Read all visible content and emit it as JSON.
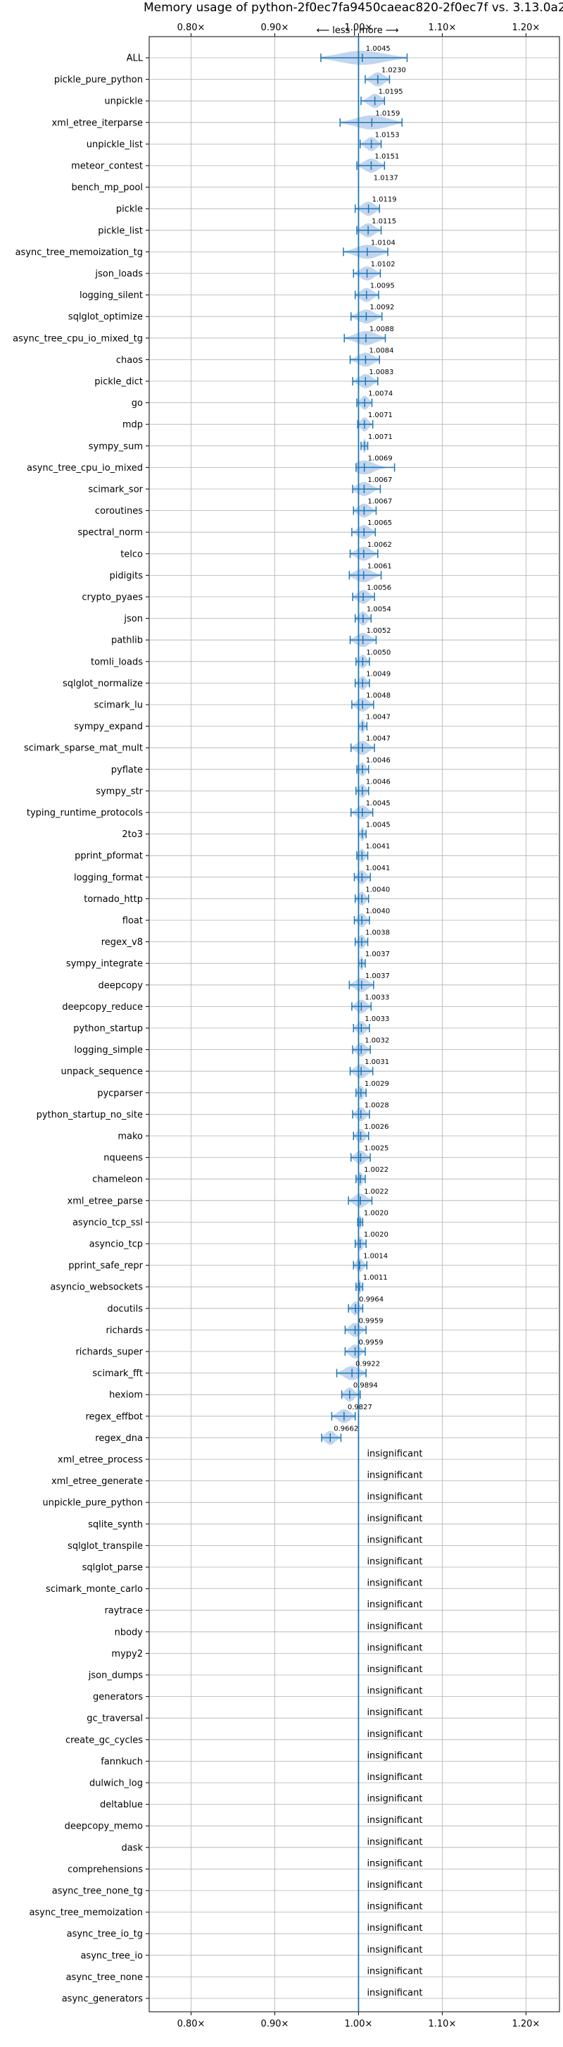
{
  "chart_data": {
    "type": "violin",
    "title": "Memory usage of python-2f0ec7fa9450caeac820-2f0ec7f vs. 3.13.0a2+",
    "direction_label": "⟵ less | more ⟶",
    "xlim": [
      0.75,
      1.24
    ],
    "xticks": [
      0.8,
      0.9,
      1.0,
      1.1,
      1.2
    ],
    "xtick_labels": [
      "0.80×",
      "0.90×",
      "1.00×",
      "1.10×",
      "1.20×"
    ],
    "reference_line": 1.0,
    "grid": true,
    "colors": {
      "series": "#1f77b4",
      "violin_fill": "#aec7e8",
      "grid": "#b0b0b0"
    },
    "insignificant_label": "insignificant",
    "benchmarks": [
      {
        "name": "ALL",
        "value": 1.0045,
        "label": "1.0045",
        "lo": 0.955,
        "hi": 1.058
      },
      {
        "name": "pickle_pure_python",
        "value": 1.023,
        "label": "1.0230",
        "lo": 1.008,
        "hi": 1.037
      },
      {
        "name": "unpickle",
        "value": 1.0195,
        "label": "1.0195",
        "lo": 1.003,
        "hi": 1.031
      },
      {
        "name": "xml_etree_iterparse",
        "value": 1.0159,
        "label": "1.0159",
        "lo": 0.978,
        "hi": 1.052
      },
      {
        "name": "unpickle_list",
        "value": 1.0153,
        "label": "1.0153",
        "lo": 1.002,
        "hi": 1.027
      },
      {
        "name": "meteor_contest",
        "value": 1.0151,
        "label": "1.0151",
        "lo": 0.998,
        "hi": 1.031
      },
      {
        "name": "bench_mp_pool",
        "value": 1.0137,
        "label": "1.0137",
        "lo": null,
        "hi": null
      },
      {
        "name": "pickle",
        "value": 1.0119,
        "label": "1.0119",
        "lo": 0.996,
        "hi": 1.025
      },
      {
        "name": "pickle_list",
        "value": 1.0115,
        "label": "1.0115",
        "lo": 0.998,
        "hi": 1.027
      },
      {
        "name": "async_tree_memoization_tg",
        "value": 1.0104,
        "label": "1.0104",
        "lo": 0.982,
        "hi": 1.035
      },
      {
        "name": "json_loads",
        "value": 1.0102,
        "label": "1.0102",
        "lo": 0.994,
        "hi": 1.026
      },
      {
        "name": "logging_silent",
        "value": 1.0095,
        "label": "1.0095",
        "lo": 0.996,
        "hi": 1.024
      },
      {
        "name": "sqlglot_optimize",
        "value": 1.0092,
        "label": "1.0092",
        "lo": 0.991,
        "hi": 1.028
      },
      {
        "name": "async_tree_cpu_io_mixed_tg",
        "value": 1.0088,
        "label": "1.0088",
        "lo": 0.983,
        "hi": 1.032
      },
      {
        "name": "chaos",
        "value": 1.0084,
        "label": "1.0084",
        "lo": 0.99,
        "hi": 1.025
      },
      {
        "name": "pickle_dict",
        "value": 1.0083,
        "label": "1.0083",
        "lo": 0.993,
        "hi": 1.023
      },
      {
        "name": "go",
        "value": 1.0074,
        "label": "1.0074",
        "lo": 0.998,
        "hi": 1.016
      },
      {
        "name": "mdp",
        "value": 1.0071,
        "label": "1.0071",
        "lo": 0.999,
        "hi": 1.017
      },
      {
        "name": "sympy_sum",
        "value": 1.0071,
        "label": "1.0071",
        "lo": 1.003,
        "hi": 1.011
      },
      {
        "name": "async_tree_cpu_io_mixed",
        "value": 1.0069,
        "label": "1.0069",
        "lo": 0.997,
        "hi": 1.043
      },
      {
        "name": "scimark_sor",
        "value": 1.0067,
        "label": "1.0067",
        "lo": 0.993,
        "hi": 1.026
      },
      {
        "name": "coroutines",
        "value": 1.0067,
        "label": "1.0067",
        "lo": 0.994,
        "hi": 1.021
      },
      {
        "name": "spectral_norm",
        "value": 1.0065,
        "label": "1.0065",
        "lo": 0.992,
        "hi": 1.02
      },
      {
        "name": "telco",
        "value": 1.0062,
        "label": "1.0062",
        "lo": 0.99,
        "hi": 1.023
      },
      {
        "name": "pidigits",
        "value": 1.0061,
        "label": "1.0061",
        "lo": 0.989,
        "hi": 1.027
      },
      {
        "name": "crypto_pyaes",
        "value": 1.0056,
        "label": "1.0056",
        "lo": 0.993,
        "hi": 1.019
      },
      {
        "name": "json",
        "value": 1.0054,
        "label": "1.0054",
        "lo": 0.996,
        "hi": 1.015
      },
      {
        "name": "pathlib",
        "value": 1.0052,
        "label": "1.0052",
        "lo": 0.99,
        "hi": 1.021
      },
      {
        "name": "tomli_loads",
        "value": 1.005,
        "label": "1.0050",
        "lo": 0.997,
        "hi": 1.013
      },
      {
        "name": "sqlglot_normalize",
        "value": 1.0049,
        "label": "1.0049",
        "lo": 0.996,
        "hi": 1.013
      },
      {
        "name": "scimark_lu",
        "value": 1.0048,
        "label": "1.0048",
        "lo": 0.992,
        "hi": 1.018
      },
      {
        "name": "sympy_expand",
        "value": 1.0047,
        "label": "1.0047",
        "lo": 1.0,
        "hi": 1.01
      },
      {
        "name": "scimark_sparse_mat_mult",
        "value": 1.0047,
        "label": "1.0047",
        "lo": 0.991,
        "hi": 1.019
      },
      {
        "name": "pyflate",
        "value": 1.0046,
        "label": "1.0046",
        "lo": 0.998,
        "hi": 1.012
      },
      {
        "name": "sympy_str",
        "value": 1.0046,
        "label": "1.0046",
        "lo": 0.997,
        "hi": 1.012
      },
      {
        "name": "typing_runtime_protocols",
        "value": 1.0045,
        "label": "1.0045",
        "lo": 0.991,
        "hi": 1.017
      },
      {
        "name": "2to3",
        "value": 1.0045,
        "label": "1.0045",
        "lo": 1.0,
        "hi": 1.009
      },
      {
        "name": "pprint_pformat",
        "value": 1.0041,
        "label": "1.0041",
        "lo": 0.998,
        "hi": 1.011
      },
      {
        "name": "logging_format",
        "value": 1.0041,
        "label": "1.0041",
        "lo": 0.995,
        "hi": 1.014
      },
      {
        "name": "tornado_http",
        "value": 1.004,
        "label": "1.0040",
        "lo": 0.996,
        "hi": 1.012
      },
      {
        "name": "float",
        "value": 1.004,
        "label": "1.0040",
        "lo": 0.995,
        "hi": 1.013
      },
      {
        "name": "regex_v8",
        "value": 1.0038,
        "label": "1.0038",
        "lo": 0.996,
        "hi": 1.011
      },
      {
        "name": "sympy_integrate",
        "value": 1.0037,
        "label": "1.0037",
        "lo": 1.0,
        "hi": 1.008
      },
      {
        "name": "deepcopy",
        "value": 1.0037,
        "label": "1.0037",
        "lo": 0.989,
        "hi": 1.018
      },
      {
        "name": "deepcopy_reduce",
        "value": 1.0033,
        "label": "1.0033",
        "lo": 0.992,
        "hi": 1.015
      },
      {
        "name": "python_startup",
        "value": 1.0033,
        "label": "1.0033",
        "lo": 0.994,
        "hi": 1.013
      },
      {
        "name": "logging_simple",
        "value": 1.0032,
        "label": "1.0032",
        "lo": 0.993,
        "hi": 1.014
      },
      {
        "name": "unpack_sequence",
        "value": 1.0031,
        "label": "1.0031",
        "lo": 0.99,
        "hi": 1.017
      },
      {
        "name": "pycparser",
        "value": 1.0029,
        "label": "1.0029",
        "lo": 0.997,
        "hi": 1.009
      },
      {
        "name": "python_startup_no_site",
        "value": 1.0028,
        "label": "1.0028",
        "lo": 0.993,
        "hi": 1.013
      },
      {
        "name": "mako",
        "value": 1.0026,
        "label": "1.0026",
        "lo": 0.994,
        "hi": 1.012
      },
      {
        "name": "nqueens",
        "value": 1.0025,
        "label": "1.0025",
        "lo": 0.991,
        "hi": 1.014
      },
      {
        "name": "chameleon",
        "value": 1.0022,
        "label": "1.0022",
        "lo": 0.997,
        "hi": 1.008
      },
      {
        "name": "xml_etree_parse",
        "value": 1.0022,
        "label": "1.0022",
        "lo": 0.988,
        "hi": 1.016
      },
      {
        "name": "asyncio_tcp_ssl",
        "value": 1.002,
        "label": "1.0020",
        "lo": 0.999,
        "hi": 1.005
      },
      {
        "name": "asyncio_tcp",
        "value": 1.002,
        "label": "1.0020",
        "lo": 0.996,
        "hi": 1.009
      },
      {
        "name": "pprint_safe_repr",
        "value": 1.0014,
        "label": "1.0014",
        "lo": 0.994,
        "hi": 1.01
      },
      {
        "name": "asyncio_websockets",
        "value": 1.0011,
        "label": "1.0011",
        "lo": 0.997,
        "hi": 1.005
      },
      {
        "name": "docutils",
        "value": 0.9964,
        "label": "0.9964",
        "lo": 0.988,
        "hi": 1.005
      },
      {
        "name": "richards",
        "value": 0.9959,
        "label": "0.9959",
        "lo": 0.984,
        "hi": 1.009
      },
      {
        "name": "richards_super",
        "value": 0.9959,
        "label": "0.9959",
        "lo": 0.984,
        "hi": 1.008
      },
      {
        "name": "scimark_fft",
        "value": 0.9922,
        "label": "0.9922",
        "lo": 0.974,
        "hi": 1.009
      },
      {
        "name": "hexiom",
        "value": 0.9894,
        "label": "0.9894",
        "lo": 0.98,
        "hi": 1.002
      },
      {
        "name": "regex_effbot",
        "value": 0.9827,
        "label": "0.9827",
        "lo": 0.968,
        "hi": 0.996
      },
      {
        "name": "regex_dna",
        "value": 0.9662,
        "label": "0.9662",
        "lo": 0.956,
        "hi": 0.979
      },
      {
        "name": "xml_etree_process",
        "value": null,
        "label": null
      },
      {
        "name": "xml_etree_generate",
        "value": null,
        "label": null
      },
      {
        "name": "unpickle_pure_python",
        "value": null,
        "label": null
      },
      {
        "name": "sqlite_synth",
        "value": null,
        "label": null
      },
      {
        "name": "sqlglot_transpile",
        "value": null,
        "label": null
      },
      {
        "name": "sqlglot_parse",
        "value": null,
        "label": null
      },
      {
        "name": "scimark_monte_carlo",
        "value": null,
        "label": null
      },
      {
        "name": "raytrace",
        "value": null,
        "label": null
      },
      {
        "name": "nbody",
        "value": null,
        "label": null
      },
      {
        "name": "mypy2",
        "value": null,
        "label": null
      },
      {
        "name": "json_dumps",
        "value": null,
        "label": null
      },
      {
        "name": "generators",
        "value": null,
        "label": null
      },
      {
        "name": "gc_traversal",
        "value": null,
        "label": null
      },
      {
        "name": "create_gc_cycles",
        "value": null,
        "label": null
      },
      {
        "name": "fannkuch",
        "value": null,
        "label": null
      },
      {
        "name": "dulwich_log",
        "value": null,
        "label": null
      },
      {
        "name": "deltablue",
        "value": null,
        "label": null
      },
      {
        "name": "deepcopy_memo",
        "value": null,
        "label": null
      },
      {
        "name": "dask",
        "value": null,
        "label": null
      },
      {
        "name": "comprehensions",
        "value": null,
        "label": null
      },
      {
        "name": "async_tree_none_tg",
        "value": null,
        "label": null
      },
      {
        "name": "async_tree_memoization",
        "value": null,
        "label": null
      },
      {
        "name": "async_tree_io_tg",
        "value": null,
        "label": null
      },
      {
        "name": "async_tree_io",
        "value": null,
        "label": null
      },
      {
        "name": "async_tree_none",
        "value": null,
        "label": null
      },
      {
        "name": "async_generators",
        "value": null,
        "label": null
      }
    ]
  }
}
